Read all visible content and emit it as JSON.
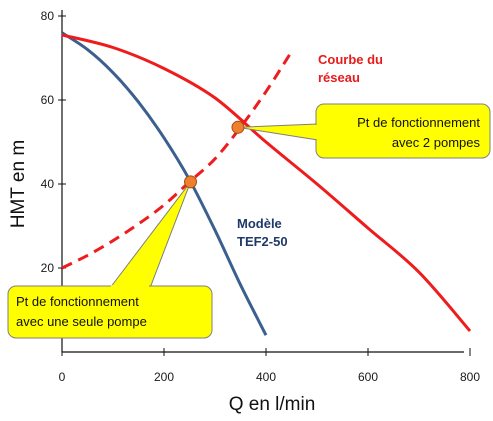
{
  "chart_data": {
    "type": "line",
    "xlabel": "Q en l/min",
    "ylabel": "HMT en m",
    "xlim": [
      0,
      800
    ],
    "ylim": [
      0,
      80
    ],
    "x_ticks": [
      "0",
      "200",
      "400",
      "600",
      "800"
    ],
    "y_ticks": [
      "20",
      "40",
      "60",
      "80"
    ],
    "grid": false,
    "series": [
      {
        "name": "Modèle TEF2-50",
        "label_lines": [
          "Modèle",
          "TEF2-50"
        ],
        "color": "#3b5f8f",
        "style": "solid",
        "x": [
          0,
          50,
          100,
          150,
          200,
          250,
          300,
          350,
          400
        ],
        "y": [
          76,
          72,
          66.5,
          59.5,
          51,
          41,
          29,
          16,
          4
        ]
      },
      {
        "name": "",
        "color": "#ee1c1c",
        "style": "solid",
        "x": [
          0,
          100,
          200,
          300,
          400,
          500,
          600,
          700,
          800
        ],
        "y": [
          75.5,
          72.5,
          67.5,
          60.5,
          50,
          40,
          29.5,
          19,
          5
        ]
      },
      {
        "name": "Courbe du réseau",
        "label_lines": [
          "Courbe du",
          "réseau"
        ],
        "color": "#ee1c1c",
        "style": "dashed",
        "x": [
          0,
          50,
          100,
          150,
          200,
          250,
          300,
          350,
          400,
          450
        ],
        "y": [
          20,
          23,
          26.5,
          30.5,
          35,
          40.5,
          46,
          53.5,
          62,
          71.5
        ]
      }
    ],
    "annotations": [
      {
        "name": "point-single-pump",
        "lines": [
          "Pt de fonctionnement",
          "avec une seule pompe"
        ],
        "x": 252,
        "y": 40.5,
        "color": "#ee7f2d"
      },
      {
        "name": "point-two-pumps",
        "lines": [
          "Pt de fonctionnement",
          "avec 2  pompes"
        ],
        "x": 345,
        "y": 53.5,
        "color": "#ee7f2d"
      }
    ],
    "callout_fill": "#ffff00"
  }
}
